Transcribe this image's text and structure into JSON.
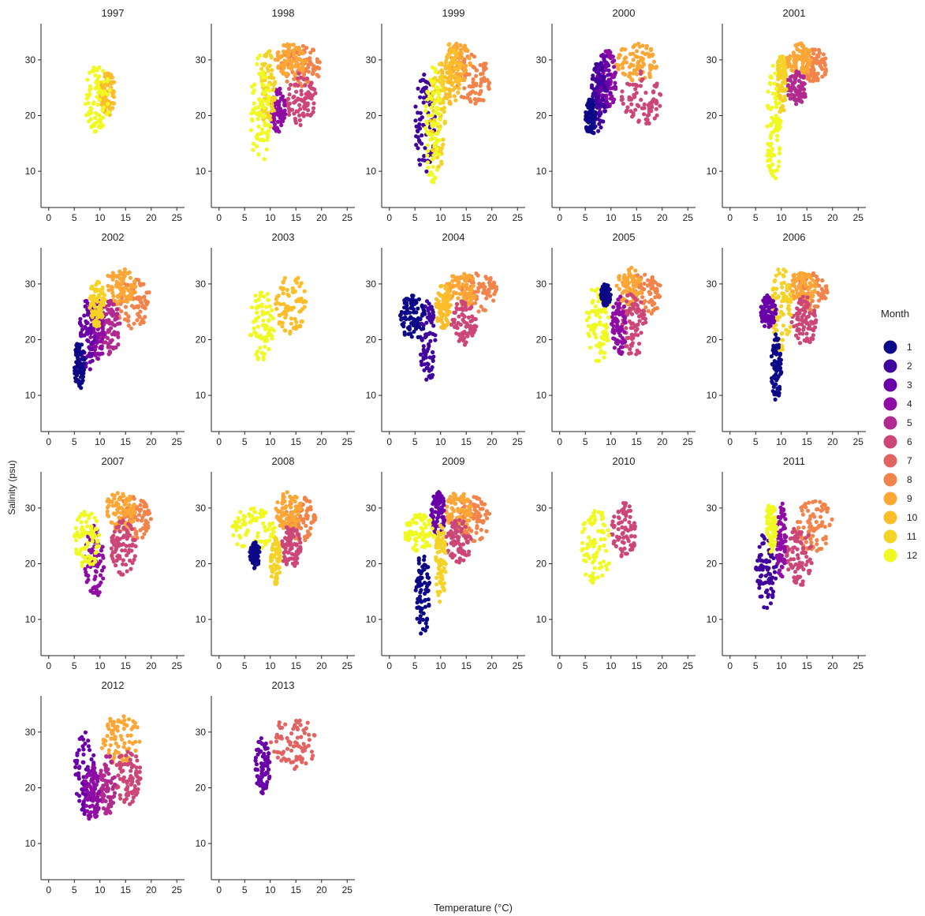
{
  "chart_data": {
    "type": "scatter",
    "xlabel": "Temperature (°C)",
    "ylabel": "Salinity (psu)",
    "xlim": [
      -1.5,
      26.5
    ],
    "ylim": [
      3.5,
      36.5
    ],
    "x_ticks": [
      0,
      5,
      10,
      15,
      20,
      25
    ],
    "y_ticks": [
      10,
      20,
      30
    ],
    "grid": false,
    "legend": {
      "title": "Month",
      "placement": "right",
      "entries": [
        {
          "label": "1",
          "color": "#0d0887"
        },
        {
          "label": "2",
          "color": "#41049d"
        },
        {
          "label": "3",
          "color": "#6a00a8"
        },
        {
          "label": "4",
          "color": "#8f0da4"
        },
        {
          "label": "5",
          "color": "#b12a90"
        },
        {
          "label": "6",
          "color": "#cc4778"
        },
        {
          "label": "7",
          "color": "#e16462"
        },
        {
          "label": "8",
          "color": "#f2844b"
        },
        {
          "label": "9",
          "color": "#fca636"
        },
        {
          "label": "10",
          "color": "#fcbd2a"
        },
        {
          "label": "11",
          "color": "#f5d326"
        },
        {
          "label": "12",
          "color": "#f0f921"
        }
      ]
    },
    "panels": [
      {
        "title": "1997",
        "clusters": [
          {
            "month": 10,
            "x": [
              10,
              13
            ],
            "y": [
              20,
              28
            ]
          },
          {
            "month": 12,
            "x": [
              7,
              12
            ],
            "y": [
              17,
              29
            ]
          }
        ]
      },
      {
        "title": "1998",
        "clusters": [
          {
            "month": 8,
            "x": [
              12,
              20
            ],
            "y": [
              25,
              33
            ]
          },
          {
            "month": 9,
            "x": [
              11,
              17
            ],
            "y": [
              27,
              33
            ]
          },
          {
            "month": 6,
            "x": [
              13,
              19
            ],
            "y": [
              18,
              28
            ]
          },
          {
            "month": 4,
            "x": [
              10,
              13
            ],
            "y": [
              17,
              25
            ]
          },
          {
            "month": 11,
            "x": [
              8,
              11
            ],
            "y": [
              17,
              32
            ]
          },
          {
            "month": 12,
            "x": [
              6,
              10
            ],
            "y": [
              11,
              31
            ]
          }
        ]
      },
      {
        "title": "1999",
        "clusters": [
          {
            "month": 8,
            "x": [
              13,
              20
            ],
            "y": [
              22,
              31
            ]
          },
          {
            "month": 9,
            "x": [
              11,
              16
            ],
            "y": [
              26,
              33
            ]
          },
          {
            "month": 10,
            "x": [
              10,
              14
            ],
            "y": [
              22,
              33
            ]
          },
          {
            "month": 2,
            "x": [
              5,
              9
            ],
            "y": [
              9,
              28
            ]
          },
          {
            "month": 11,
            "x": [
              8,
              11
            ],
            "y": [
              10,
              30
            ]
          },
          {
            "month": 12,
            "x": [
              7,
              10
            ],
            "y": [
              8,
              29
            ]
          }
        ]
      },
      {
        "title": "2000",
        "clusters": [
          {
            "month": 9,
            "x": [
              11,
              19
            ],
            "y": [
              26,
              33
            ]
          },
          {
            "month": 6,
            "x": [
              12,
              20
            ],
            "y": [
              18,
              28
            ]
          },
          {
            "month": 4,
            "x": [
              8,
              11
            ],
            "y": [
              21,
              32
            ]
          },
          {
            "month": 3,
            "x": [
              7,
              10
            ],
            "y": [
              20,
              31
            ]
          },
          {
            "month": 2,
            "x": [
              6,
              9
            ],
            "y": [
              17,
              30
            ]
          },
          {
            "month": 1,
            "x": [
              5,
              7
            ],
            "y": [
              16,
              23
            ]
          }
        ]
      },
      {
        "title": "2001",
        "clusters": [
          {
            "month": 8,
            "x": [
              14,
              19
            ],
            "y": [
              26,
              32
            ]
          },
          {
            "month": 9,
            "x": [
              11,
              16
            ],
            "y": [
              27,
              33
            ]
          },
          {
            "month": 5,
            "x": [
              11,
              15
            ],
            "y": [
              22,
              28
            ]
          },
          {
            "month": 11,
            "x": [
              9,
              11
            ],
            "y": [
              20,
              31
            ]
          },
          {
            "month": 12,
            "x": [
              7,
              10
            ],
            "y": [
              8,
              29
            ]
          }
        ]
      },
      {
        "title": "2002",
        "clusters": [
          {
            "month": 8,
            "x": [
              13,
              20
            ],
            "y": [
              22,
              31
            ]
          },
          {
            "month": 9,
            "x": [
              11,
              17
            ],
            "y": [
              26,
              33
            ]
          },
          {
            "month": 5,
            "x": [
              10,
              14
            ],
            "y": [
              17,
              27
            ]
          },
          {
            "month": 4,
            "x": [
              8,
              11
            ],
            "y": [
              16,
              28
            ]
          },
          {
            "month": 3,
            "x": [
              6,
              9
            ],
            "y": [
              14,
              28
            ]
          },
          {
            "month": 1,
            "x": [
              5,
              7
            ],
            "y": [
              11,
              20
            ]
          },
          {
            "month": 11,
            "x": [
              8,
              11
            ],
            "y": [
              22,
              31
            ]
          }
        ]
      },
      {
        "title": "2003",
        "clusters": [
          {
            "month": 10,
            "x": [
              11,
              17
            ],
            "y": [
              21,
              32
            ]
          },
          {
            "month": 12,
            "x": [
              6,
              11
            ],
            "y": [
              16,
              29
            ]
          }
        ]
      },
      {
        "title": "2004",
        "clusters": [
          {
            "month": 8,
            "x": [
              14,
              21
            ],
            "y": [
              25,
              32
            ]
          },
          {
            "month": 9,
            "x": [
              11,
              17
            ],
            "y": [
              26,
              32
            ]
          },
          {
            "month": 6,
            "x": [
              12,
              17
            ],
            "y": [
              19,
              27
            ]
          },
          {
            "month": 10,
            "x": [
              9,
              12
            ],
            "y": [
              22,
              30
            ]
          },
          {
            "month": 2,
            "x": [
              6,
              9
            ],
            "y": [
              12,
              27
            ]
          },
          {
            "month": 1,
            "x": [
              2,
              7
            ],
            "y": [
              20,
              28
            ]
          }
        ]
      },
      {
        "title": "2005",
        "clusters": [
          {
            "month": 8,
            "x": [
              13,
              20
            ],
            "y": [
              24,
              32
            ]
          },
          {
            "month": 9,
            "x": [
              11,
              16
            ],
            "y": [
              26,
              33
            ]
          },
          {
            "month": 6,
            "x": [
              12,
              17
            ],
            "y": [
              17,
              29
            ]
          },
          {
            "month": 4,
            "x": [
              10,
              13
            ],
            "y": [
              17,
              28
            ]
          },
          {
            "month": 12,
            "x": [
              5,
              10
            ],
            "y": [
              16,
              30
            ]
          },
          {
            "month": 1,
            "x": [
              8,
              10
            ],
            "y": [
              26,
              30
            ]
          }
        ]
      },
      {
        "title": "2006",
        "clusters": [
          {
            "month": 8,
            "x": [
              13,
              19
            ],
            "y": [
              25,
              32
            ]
          },
          {
            "month": 9,
            "x": [
              11,
              17
            ],
            "y": [
              27,
              32
            ]
          },
          {
            "month": 6,
            "x": [
              12,
              17
            ],
            "y": [
              19,
              28
            ]
          },
          {
            "month": 11,
            "x": [
              8,
              12
            ],
            "y": [
              18,
              33
            ]
          },
          {
            "month": 3,
            "x": [
              6,
              9
            ],
            "y": [
              22,
              28
            ]
          },
          {
            "month": 1,
            "x": [
              8,
              10
            ],
            "y": [
              9,
              21
            ]
          }
        ]
      },
      {
        "title": "2007",
        "clusters": [
          {
            "month": 8,
            "x": [
              13,
              20
            ],
            "y": [
              24,
              32
            ]
          },
          {
            "month": 9,
            "x": [
              11,
              17
            ],
            "y": [
              26,
              33
            ]
          },
          {
            "month": 6,
            "x": [
              12,
              17
            ],
            "y": [
              18,
              28
            ]
          },
          {
            "month": 4,
            "x": [
              7,
              11
            ],
            "y": [
              14,
              27
            ]
          },
          {
            "month": 12,
            "x": [
              5,
              10
            ],
            "y": [
              19,
              30
            ]
          }
        ]
      },
      {
        "title": "2008",
        "clusters": [
          {
            "month": 8,
            "x": [
              13,
              19
            ],
            "y": [
              24,
              32
            ]
          },
          {
            "month": 9,
            "x": [
              11,
              16
            ],
            "y": [
              26,
              33
            ]
          },
          {
            "month": 6,
            "x": [
              12,
              16
            ],
            "y": [
              19,
              27
            ]
          },
          {
            "month": 11,
            "x": [
              10,
              12
            ],
            "y": [
              16,
              25
            ]
          },
          {
            "month": 12,
            "x": [
              2,
              11
            ],
            "y": [
              22,
              30
            ]
          },
          {
            "month": 1,
            "x": [
              6,
              8
            ],
            "y": [
              19,
              24
            ]
          }
        ]
      },
      {
        "title": "2009",
        "clusters": [
          {
            "month": 8,
            "x": [
              13,
              20
            ],
            "y": [
              24,
              32
            ]
          },
          {
            "month": 9,
            "x": [
              11,
              16
            ],
            "y": [
              26,
              33
            ]
          },
          {
            "month": 6,
            "x": [
              11,
              16
            ],
            "y": [
              20,
              28
            ]
          },
          {
            "month": 3,
            "x": [
              8,
              11
            ],
            "y": [
              25,
              33
            ]
          },
          {
            "month": 11,
            "x": [
              9,
              11
            ],
            "y": [
              13,
              27
            ]
          },
          {
            "month": 12,
            "x": [
              3,
              9
            ],
            "y": [
              22,
              29
            ]
          },
          {
            "month": 1,
            "x": [
              5,
              8
            ],
            "y": [
              7,
              22
            ]
          }
        ]
      },
      {
        "title": "2010",
        "clusters": [
          {
            "month": 6,
            "x": [
              10,
              15
            ],
            "y": [
              21,
              31
            ]
          },
          {
            "month": 12,
            "x": [
              4,
              10
            ],
            "y": [
              16,
              30
            ]
          }
        ]
      },
      {
        "title": "2011",
        "clusters": [
          {
            "month": 8,
            "x": [
              13,
              20
            ],
            "y": [
              22,
              32
            ]
          },
          {
            "month": 6,
            "x": [
              11,
              16
            ],
            "y": [
              16,
              27
            ]
          },
          {
            "month": 4,
            "x": [
              9,
              11
            ],
            "y": [
              17,
              31
            ]
          },
          {
            "month": 2,
            "x": [
              5,
              9
            ],
            "y": [
              12,
              26
            ]
          },
          {
            "month": 12,
            "x": [
              7,
              9
            ],
            "y": [
              22,
              31
            ]
          }
        ]
      },
      {
        "title": "2012",
        "clusters": [
          {
            "month": 9,
            "x": [
              10,
              18
            ],
            "y": [
              24,
              33
            ]
          },
          {
            "month": 6,
            "x": [
              13,
              18
            ],
            "y": [
              17,
              27
            ]
          },
          {
            "month": 5,
            "x": [
              10,
              13
            ],
            "y": [
              15,
              26
            ]
          },
          {
            "month": 3,
            "x": [
              5,
              9
            ],
            "y": [
              15,
              30
            ]
          },
          {
            "month": 4,
            "x": [
              7,
              10
            ],
            "y": [
              14,
              24
            ]
          }
        ]
      },
      {
        "title": "2013",
        "clusters": [
          {
            "month": 7,
            "x": [
              10,
              19
            ],
            "y": [
              23,
              33
            ]
          },
          {
            "month": 3,
            "x": [
              7,
              10
            ],
            "y": [
              19,
              29
            ]
          }
        ]
      }
    ]
  }
}
